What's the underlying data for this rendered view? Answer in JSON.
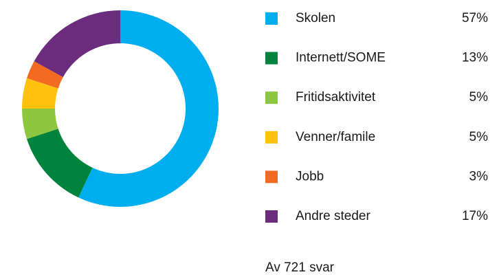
{
  "chart_data": {
    "type": "donut",
    "categories": [
      "Skolen",
      "Internett/SOME",
      "Fritidsaktivitet",
      "Venner/famile",
      "Jobb",
      "Andre steder"
    ],
    "values": [
      57,
      13,
      5,
      5,
      3,
      17
    ],
    "value_labels": [
      "57%",
      "13%",
      "5%",
      "5%",
      "3%",
      "17%"
    ],
    "colors": [
      "#00aeef",
      "#00843d",
      "#8dc63f",
      "#ffc20e",
      "#f26b21",
      "#6b2c7d"
    ],
    "note": "Av 721 svar"
  }
}
